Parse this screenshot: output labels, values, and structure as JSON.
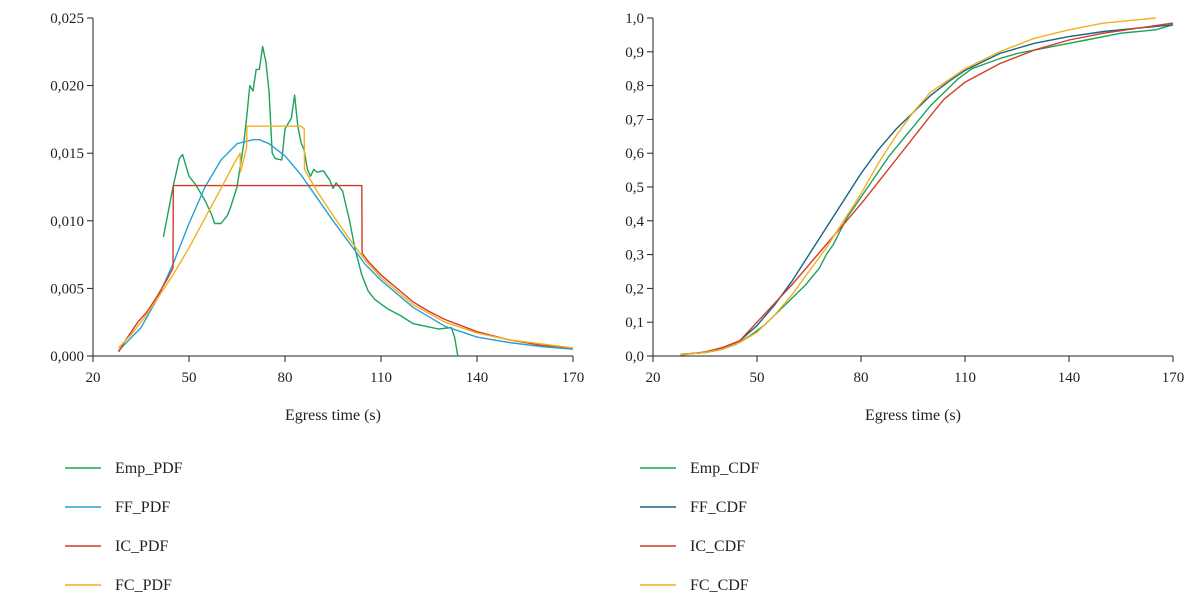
{
  "chart_data": [
    {
      "type": "line",
      "xlabel": "Egress time (s)",
      "ylabel": "",
      "xlim": [
        20,
        170
      ],
      "ylim": [
        0,
        0.025
      ],
      "x_ticks": [
        20,
        50,
        80,
        110,
        140,
        170
      ],
      "x_tick_labels": [
        "20",
        "50",
        "80",
        "110",
        "140",
        "170"
      ],
      "y_ticks": [
        0,
        0.005,
        0.01,
        0.015,
        0.02,
        0.025
      ],
      "y_tick_labels": [
        "0,000",
        "0,005",
        "0,010",
        "0,015",
        "0,020",
        "0,025"
      ],
      "legend_position": "bottom-left",
      "series": [
        {
          "name": "Emp_PDF",
          "color": "#1aa35a",
          "x": [
            42,
            45,
            47,
            48,
            50,
            52,
            55,
            57,
            58,
            60,
            62,
            63,
            65,
            67,
            68,
            69,
            70,
            71,
            72,
            73,
            74,
            75,
            76,
            77,
            79,
            80,
            82,
            83,
            84,
            85,
            86,
            87,
            88,
            89,
            90,
            92,
            94,
            95,
            96,
            98,
            100,
            102,
            104,
            106,
            108,
            112,
            116,
            120,
            124,
            128,
            132,
            133,
            134
          ],
          "y": [
            0.0088,
            0.0125,
            0.0146,
            0.0149,
            0.0133,
            0.0127,
            0.0115,
            0.0105,
            0.0098,
            0.0098,
            0.0104,
            0.011,
            0.0125,
            0.0155,
            0.0176,
            0.02,
            0.0196,
            0.0212,
            0.0212,
            0.0229,
            0.0218,
            0.0196,
            0.015,
            0.0146,
            0.0145,
            0.0168,
            0.0176,
            0.0193,
            0.017,
            0.0158,
            0.0152,
            0.0138,
            0.0133,
            0.0138,
            0.0136,
            0.0137,
            0.013,
            0.0124,
            0.0128,
            0.0122,
            0.0102,
            0.0078,
            0.006,
            0.0048,
            0.0042,
            0.0035,
            0.003,
            0.0024,
            0.0022,
            0.002,
            0.0021,
            0.0014,
            0.0
          ]
        },
        {
          "name": "FF_PDF",
          "color": "#2a9fd6",
          "x": [
            28,
            35,
            40,
            45,
            50,
            55,
            60,
            65,
            70,
            72,
            75,
            80,
            85,
            90,
            95,
            100,
            105,
            110,
            120,
            130,
            140,
            150,
            160,
            170
          ],
          "y": [
            0.0004,
            0.0021,
            0.0042,
            0.0068,
            0.0098,
            0.0125,
            0.0145,
            0.0157,
            0.016,
            0.016,
            0.0157,
            0.0148,
            0.0134,
            0.0117,
            0.01,
            0.0084,
            0.0068,
            0.0056,
            0.0036,
            0.0022,
            0.0014,
            0.001,
            0.0007,
            0.0005
          ]
        },
        {
          "name": "IC_PDF",
          "color": "#d23c2a",
          "x": [
            28,
            30,
            32,
            34,
            37,
            40,
            43,
            45,
            45.1,
            104,
            104.1,
            106,
            110,
            115,
            120,
            125,
            130,
            140,
            150,
            160,
            170
          ],
          "y": [
            0.0003,
            0.0011,
            0.0018,
            0.0025,
            0.0033,
            0.0044,
            0.0056,
            0.0065,
            0.0126,
            0.0126,
            0.0076,
            0.007,
            0.006,
            0.005,
            0.004,
            0.0033,
            0.0027,
            0.0018,
            0.0012,
            0.0008,
            0.0006
          ]
        },
        {
          "name": "FC_PDF",
          "color": "#f2b01e",
          "x": [
            28,
            32,
            36,
            40,
            45,
            50,
            55,
            60,
            64,
            66,
            66.1,
            68,
            68.1,
            84,
            85,
            86,
            86.1,
            90,
            95,
            100,
            105,
            110,
            120,
            130,
            140,
            150,
            160,
            170
          ],
          "y": [
            0.0006,
            0.0016,
            0.0028,
            0.0042,
            0.006,
            0.008,
            0.0102,
            0.0124,
            0.0142,
            0.015,
            0.0136,
            0.0154,
            0.017,
            0.017,
            0.017,
            0.0168,
            0.0138,
            0.0122,
            0.0104,
            0.0087,
            0.0071,
            0.0058,
            0.0038,
            0.0025,
            0.0017,
            0.0012,
            0.0009,
            0.0006
          ]
        }
      ]
    },
    {
      "type": "line",
      "xlabel": "Egress time (s)",
      "ylabel": "",
      "xlim": [
        20,
        170
      ],
      "ylim": [
        0,
        1.0
      ],
      "x_ticks": [
        20,
        50,
        80,
        110,
        140,
        170
      ],
      "x_tick_labels": [
        "20",
        "50",
        "80",
        "110",
        "140",
        "170"
      ],
      "y_ticks": [
        0,
        0.1,
        0.2,
        0.3,
        0.4,
        0.5,
        0.6,
        0.7,
        0.8,
        0.9,
        1.0
      ],
      "y_tick_labels": [
        "0,0",
        "0,1",
        "0,2",
        "0,3",
        "0,4",
        "0,5",
        "0,6",
        "0,7",
        "0,8",
        "0,9",
        "1,0"
      ],
      "legend_position": "bottom-left",
      "series": [
        {
          "name": "Emp_CDF",
          "color": "#1aa35a",
          "x": [
            28,
            35,
            40,
            44,
            48,
            52,
            56,
            60,
            64,
            68,
            70,
            72,
            74,
            76,
            78,
            80,
            84,
            88,
            92,
            96,
            100,
            104,
            108,
            112,
            116,
            120,
            125,
            130,
            135,
            140,
            145,
            150,
            155,
            160,
            165,
            170
          ],
          "y": [
            0.005,
            0.01,
            0.02,
            0.035,
            0.06,
            0.09,
            0.13,
            0.17,
            0.21,
            0.26,
            0.3,
            0.33,
            0.37,
            0.41,
            0.44,
            0.47,
            0.53,
            0.59,
            0.64,
            0.69,
            0.74,
            0.78,
            0.82,
            0.85,
            0.865,
            0.88,
            0.895,
            0.905,
            0.915,
            0.925,
            0.935,
            0.945,
            0.955,
            0.96,
            0.965,
            0.98
          ]
        },
        {
          "name": "FF_CDF",
          "color": "#17657f",
          "x": [
            28,
            35,
            40,
            45,
            50,
            55,
            60,
            65,
            70,
            75,
            80,
            85,
            90,
            95,
            100,
            105,
            110,
            120,
            130,
            140,
            150,
            160,
            170
          ],
          "y": [
            0.005,
            0.01,
            0.02,
            0.045,
            0.09,
            0.15,
            0.22,
            0.3,
            0.38,
            0.46,
            0.54,
            0.61,
            0.67,
            0.72,
            0.77,
            0.81,
            0.845,
            0.895,
            0.925,
            0.945,
            0.96,
            0.97,
            0.98
          ]
        },
        {
          "name": "IC_CDF",
          "color": "#d23c2a",
          "x": [
            28,
            35,
            40,
            45,
            50,
            60,
            70,
            80,
            90,
            100,
            104,
            110,
            120,
            130,
            140,
            150,
            160,
            170
          ],
          "y": [
            0.003,
            0.012,
            0.025,
            0.045,
            0.1,
            0.21,
            0.33,
            0.45,
            0.58,
            0.71,
            0.76,
            0.81,
            0.865,
            0.905,
            0.935,
            0.955,
            0.97,
            0.985
          ]
        },
        {
          "name": "FC_CDF",
          "color": "#f2b01e",
          "x": [
            28,
            35,
            40,
            45,
            50,
            55,
            60,
            65,
            70,
            75,
            80,
            85,
            90,
            95,
            100,
            105,
            110,
            120,
            130,
            140,
            150,
            160,
            165
          ],
          "y": [
            0.004,
            0.01,
            0.02,
            0.04,
            0.07,
            0.12,
            0.18,
            0.25,
            0.32,
            0.4,
            0.48,
            0.57,
            0.65,
            0.72,
            0.78,
            0.815,
            0.85,
            0.9,
            0.94,
            0.965,
            0.985,
            0.995,
            1.0
          ]
        }
      ]
    }
  ]
}
